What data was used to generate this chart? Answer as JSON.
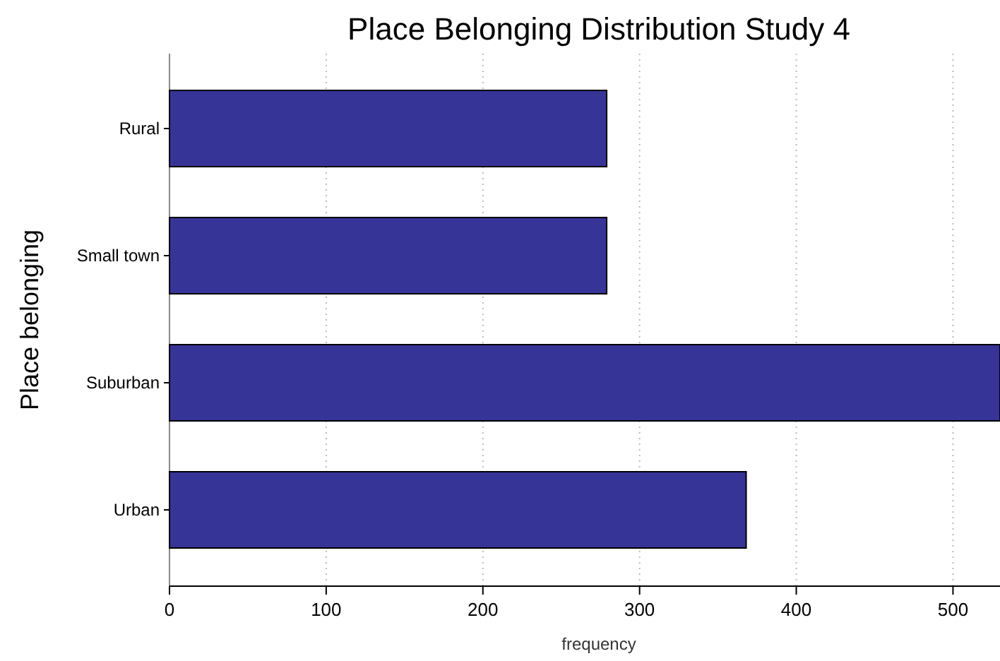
{
  "chart_data": {
    "type": "bar",
    "orientation": "horizontal",
    "title": "Place Belonging Distribution Study 4",
    "xlabel": "frequency",
    "ylabel": "Place belonging",
    "categories": [
      "Rural",
      "Small town",
      "Suburban",
      "Urban"
    ],
    "values": [
      279,
      279,
      530,
      368
    ],
    "color": "#373498",
    "xlim": [
      0,
      530
    ],
    "xticks": [
      0,
      100,
      200,
      300,
      400,
      500
    ],
    "grid": "x"
  }
}
